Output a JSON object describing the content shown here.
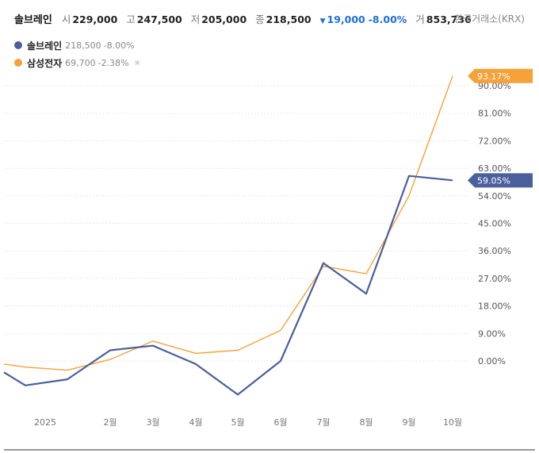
{
  "header": {
    "name": "솔브레인",
    "open_label": "시",
    "open": "229,000",
    "high_label": "고",
    "high": "247,500",
    "low_label": "저",
    "low": "205,000",
    "close_label": "종",
    "close": "218,500",
    "change": "19,000",
    "change_pct": "-8.00%",
    "volume_label": "거",
    "volume": "853,736",
    "exchange": "한국거래소(KRX)"
  },
  "legend": [
    {
      "name": "솔브레인",
      "price": "218,500",
      "change": "-8.00%",
      "color": "#4a5f9c"
    },
    {
      "name": "삼성전자",
      "price": "69,700",
      "change": "-2.38%",
      "color": "#f5a23a"
    }
  ],
  "chart_data": {
    "type": "line",
    "x": [
      "2025",
      "",
      "2월",
      "3월",
      "4월",
      "5월",
      "6월",
      "7월",
      "8월",
      "9월",
      "10월",
      ""
    ],
    "xticks": [
      "2025",
      "2월",
      "3월",
      "4월",
      "5월",
      "6월",
      "7월",
      "8월",
      "9월",
      "10월"
    ],
    "yticks": [
      "0.00%",
      "9.00%",
      "18.00%",
      "27.00%",
      "36.00%",
      "45.00%",
      "54.00%",
      "63.00%",
      "72.00%",
      "81.00%",
      "90.00%"
    ],
    "ylim": [
      -15,
      94
    ],
    "series": [
      {
        "name": "솔브레인",
        "color": "#4a5f9c",
        "values": [
          -3.7,
          -8,
          -6,
          3.5,
          5,
          -1,
          -11,
          0,
          32,
          22,
          60.5,
          59.05
        ],
        "last_label": "59.05%"
      },
      {
        "name": "삼성전자",
        "color": "#f5a23a",
        "values": [
          -1,
          -2,
          -3,
          0.5,
          6.5,
          2.5,
          3.5,
          10,
          31,
          28.5,
          54,
          93.17
        ],
        "last_label": "93.17%"
      }
    ]
  }
}
